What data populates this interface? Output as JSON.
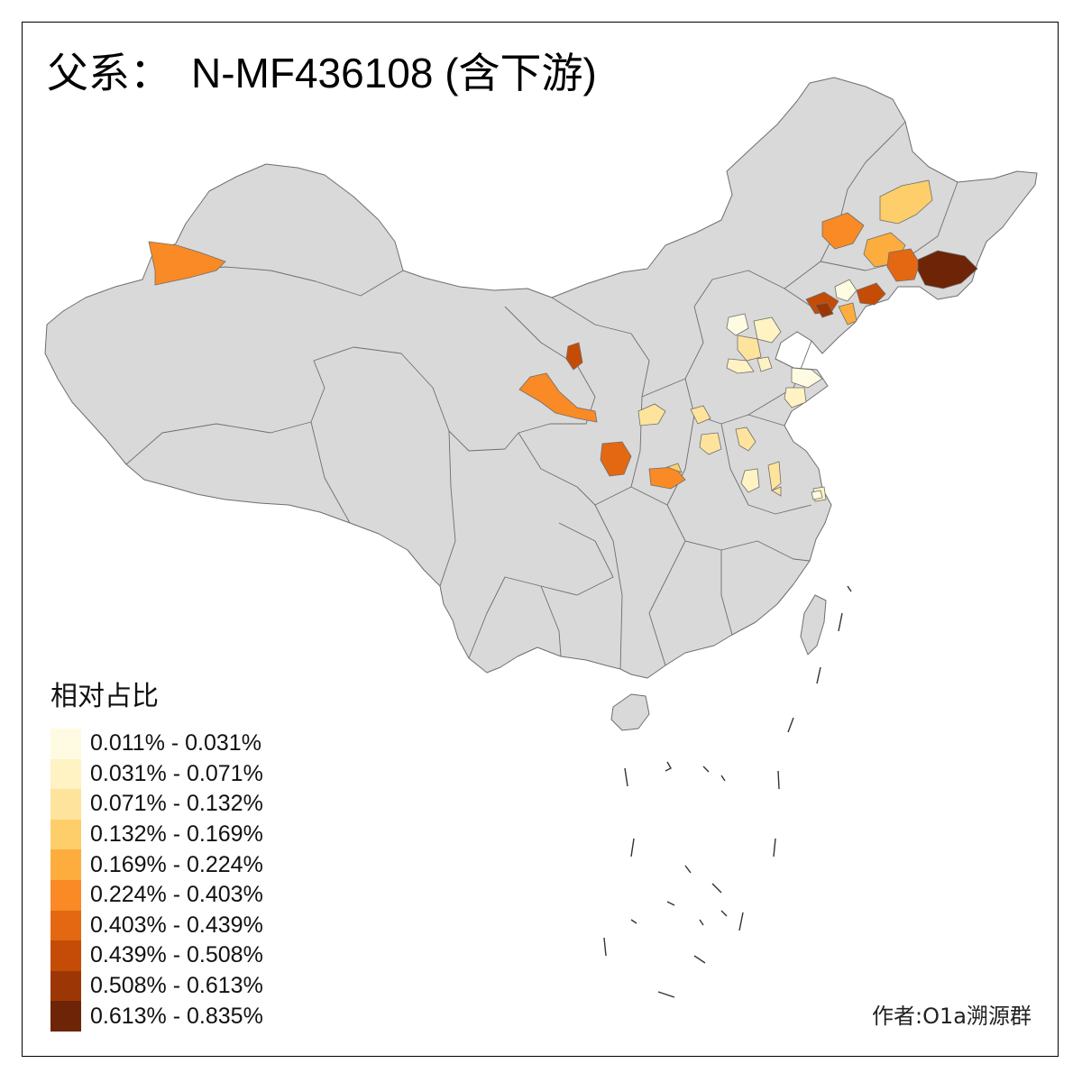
{
  "title": {
    "prefix": "父系：",
    "haplogroup": "N-MF436108 (含下游)"
  },
  "legend": {
    "title": "相对占比",
    "bins": [
      {
        "label": "0.011% - 0.031%",
        "color": "#FFFBE2"
      },
      {
        "label": "0.031% - 0.071%",
        "color": "#FFF2C3"
      },
      {
        "label": "0.071% - 0.132%",
        "color": "#FEE39C"
      },
      {
        "label": "0.132% - 0.169%",
        "color": "#FECE6B"
      },
      {
        "label": "0.169% - 0.224%",
        "color": "#FDAD3E"
      },
      {
        "label": "0.224% - 0.403%",
        "color": "#F98A25"
      },
      {
        "label": "0.403% - 0.439%",
        "color": "#E46812"
      },
      {
        "label": "0.439% - 0.508%",
        "color": "#C54C06"
      },
      {
        "label": "0.508% - 0.613%",
        "color": "#9C3705"
      },
      {
        "label": "0.613% - 0.835%",
        "color": "#6D2407"
      }
    ]
  },
  "author": "作者:O1a溯源群",
  "colors": {
    "base_fill": "#D9D9D9",
    "border": "#6E6E6E"
  },
  "regions": [
    {
      "name": "塔城-伊犁",
      "bin": 5
    },
    {
      "name": "黑河",
      "bin": 3
    },
    {
      "name": "兴安",
      "bin": 5
    },
    {
      "name": "松原",
      "bin": 4
    },
    {
      "name": "吉林",
      "bin": 6
    },
    {
      "name": "延边",
      "bin": 9
    },
    {
      "name": "赤峰-阜新",
      "bin": 7
    },
    {
      "name": "朝阳",
      "bin": 0
    },
    {
      "name": "辽阳",
      "bin": 4
    },
    {
      "name": "本溪",
      "bin": 7
    },
    {
      "name": "锦州",
      "bin": 8
    },
    {
      "name": "张家口",
      "bin": 0
    },
    {
      "name": "北京-廊坊",
      "bin": 1
    },
    {
      "name": "唐山",
      "bin": 2
    },
    {
      "name": "保定",
      "bin": 1
    },
    {
      "name": "沧州",
      "bin": 1
    },
    {
      "name": "烟台",
      "bin": 0
    },
    {
      "name": "青岛",
      "bin": 1
    },
    {
      "name": "乌海",
      "bin": 7
    },
    {
      "name": "兰州-白银",
      "bin": 5
    },
    {
      "name": "平凉",
      "bin": 2
    },
    {
      "name": "庆阳",
      "bin": 6
    },
    {
      "name": "西安",
      "bin": 5
    },
    {
      "name": "长治",
      "bin": 2
    },
    {
      "name": "邯郸",
      "bin": 2
    },
    {
      "name": "济宁",
      "bin": 2
    },
    {
      "name": "徐州",
      "bin": 1
    },
    {
      "name": "宿州",
      "bin": 2
    },
    {
      "name": "南阳",
      "bin": 3
    },
    {
      "name": "蚌埠",
      "bin": 1
    },
    {
      "name": "滁州",
      "bin": 2
    },
    {
      "name": "南通",
      "bin": 0
    }
  ]
}
